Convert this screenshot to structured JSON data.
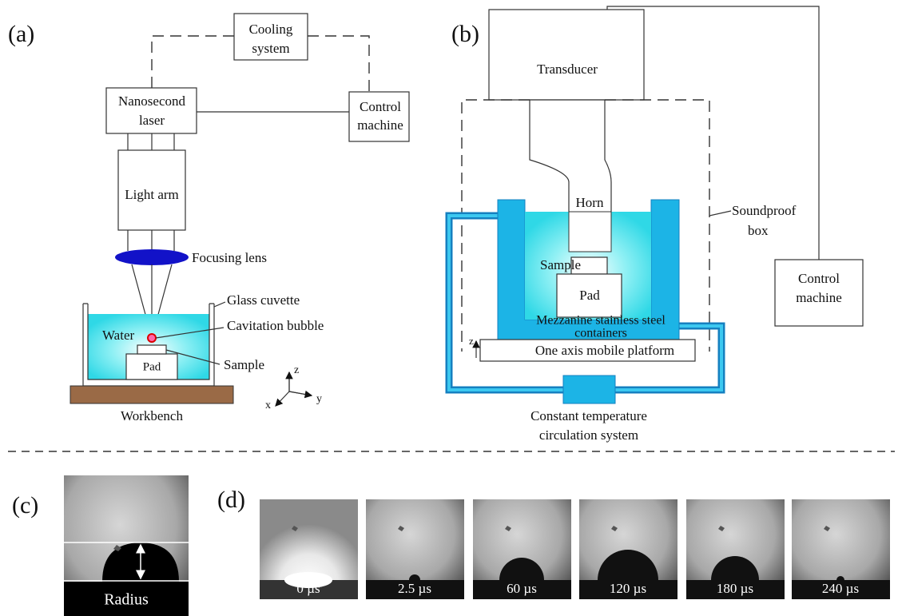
{
  "panel_a": {
    "label": "(a)",
    "cooling_system": [
      "Cooling",
      "system"
    ],
    "laser": [
      "Nanosecond",
      "laser"
    ],
    "control_machine": [
      "Control",
      "machine"
    ],
    "light_arm": "Light arm",
    "focusing_lens": "Focusing lens",
    "glass_cuvette": "Glass cuvette",
    "water": "Water",
    "cavitation_bubble": "Cavitation bubble",
    "sample": "Sample",
    "pad": "Pad",
    "workbench": "Workbench",
    "axes": {
      "z": "z",
      "x": "x",
      "y": "y"
    }
  },
  "panel_b": {
    "label": "(b)",
    "transducer": "Transducer",
    "horn": "Horn",
    "soundproof_box": [
      "Soundproof",
      "box"
    ],
    "sample": "Sample",
    "pad": "Pad",
    "containers": [
      "Mezzanine stainless steel",
      "containers"
    ],
    "axis_z": "z",
    "platform": "One axis mobile platform",
    "circulation": [
      "Constant temperature",
      "circulation system"
    ],
    "control_machine": [
      "Control",
      "machine"
    ]
  },
  "panel_c": {
    "label": "(c)",
    "radius": "Radius"
  },
  "panel_d": {
    "label": "(d)",
    "frames": [
      "0 µs",
      "2.5 µs",
      "60 µs",
      "120 µs",
      "180 µs",
      "240 µs"
    ]
  }
}
